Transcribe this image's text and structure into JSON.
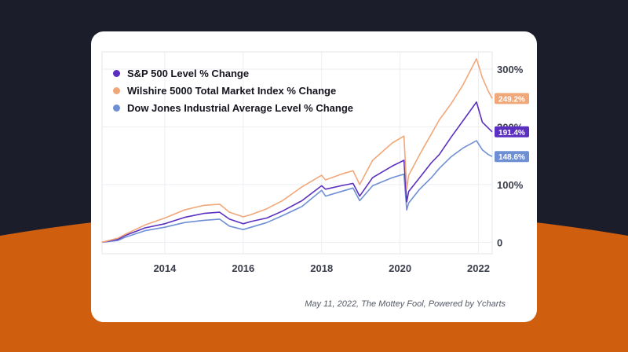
{
  "colors": {
    "background": "#1c1d2b",
    "wave": "#cf5f0f",
    "card": "#ffffff",
    "sp500": "#5b2fc0",
    "wilshire": "#f0a87a",
    "dow": "#6f8fd4"
  },
  "source": "May 11, 2022, The Mottey Fool, Powered by Ycharts",
  "chart_data": {
    "type": "line",
    "title": "",
    "xlabel": "",
    "ylabel": "",
    "x_ticks": [
      "2014",
      "2016",
      "2018",
      "2020",
      "2022"
    ],
    "y_ticks": [
      "0",
      "100%",
      "200%",
      "300%"
    ],
    "xlim": [
      2012.4,
      2022.35
    ],
    "ylim": [
      -20,
      330
    ],
    "grid": true,
    "legend_position": "top-left",
    "x": [
      2012.4,
      2012.8,
      2013.0,
      2013.5,
      2014.0,
      2014.5,
      2015.0,
      2015.4,
      2015.65,
      2016.0,
      2016.2,
      2016.6,
      2017.0,
      2017.5,
      2018.0,
      2018.1,
      2018.5,
      2018.8,
      2018.97,
      2019.3,
      2019.8,
      2020.1,
      2020.17,
      2020.22,
      2020.5,
      2020.8,
      2021.0,
      2021.3,
      2021.6,
      2021.95,
      2022.1,
      2022.25,
      2022.35
    ],
    "series": [
      {
        "name": "S&P 500 Level % Change",
        "color": "#5b2fc0",
        "end_label": "191.4%",
        "values": [
          0,
          5,
          12,
          25,
          32,
          43,
          50,
          52,
          40,
          32,
          36,
          42,
          54,
          72,
          98,
          92,
          98,
          102,
          80,
          112,
          132,
          142,
          70,
          88,
          112,
          138,
          152,
          182,
          210,
          243,
          208,
          198,
          191.4
        ]
      },
      {
        "name": "Wilshire 5000 Total Market Index % Change",
        "color": "#f0a87a",
        "end_label": "249.2%",
        "values": [
          0,
          7,
          14,
          30,
          42,
          56,
          64,
          66,
          52,
          44,
          48,
          58,
          72,
          96,
          116,
          108,
          118,
          124,
          100,
          142,
          172,
          184,
          92,
          116,
          152,
          188,
          212,
          240,
          272,
          318,
          285,
          262,
          249.2
        ]
      },
      {
        "name": "Dow Jones Industrial Average Level % Change",
        "color": "#6f8fd4",
        "end_label": "148.6%",
        "values": [
          0,
          3,
          9,
          20,
          26,
          34,
          38,
          40,
          28,
          22,
          26,
          34,
          46,
          62,
          90,
          80,
          88,
          94,
          72,
          98,
          112,
          118,
          56,
          68,
          92,
          112,
          128,
          148,
          163,
          176,
          160,
          152,
          148.6
        ]
      }
    ]
  }
}
